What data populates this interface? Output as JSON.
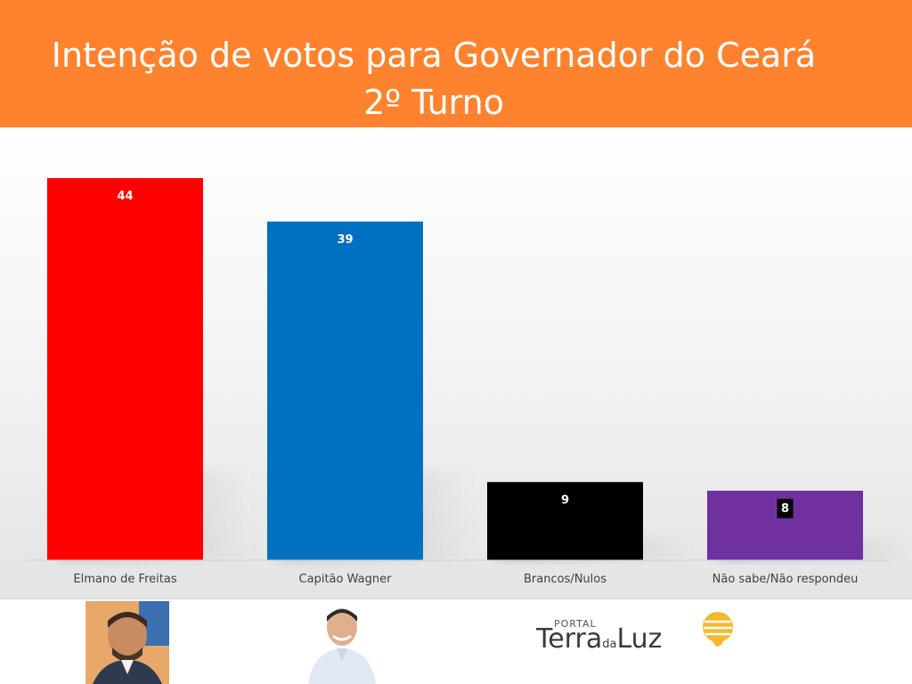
{
  "header": {
    "title_line1": "Intenção de votos para Governador do Ceará",
    "title_line2": "2º Turno",
    "background_color": "#ff832e"
  },
  "chart_data": {
    "type": "bar",
    "title": "Intenção de votos para Governador do Ceará 2º Turno",
    "categories": [
      "Elmano de Freitas",
      "Capitão Wagner",
      "Brancos/Nulos",
      "Não sabe/Não respondeu"
    ],
    "values": [
      44,
      39,
      9,
      8
    ],
    "colors": [
      "#ff0000",
      "#0070c0",
      "#000000",
      "#7030a0"
    ],
    "ylim": [
      0,
      44
    ],
    "xlabel": "",
    "ylabel": "",
    "grid": false,
    "data_labels": true
  },
  "footer": {
    "photo_1": "candidate-photo-elmano",
    "photo_2": "candidate-photo-wagner",
    "logo_small": "PORTAL",
    "logo_main": "Terra",
    "logo_da": "da",
    "logo_end": "Luz",
    "logo_accent_color": "#f5b82e"
  }
}
